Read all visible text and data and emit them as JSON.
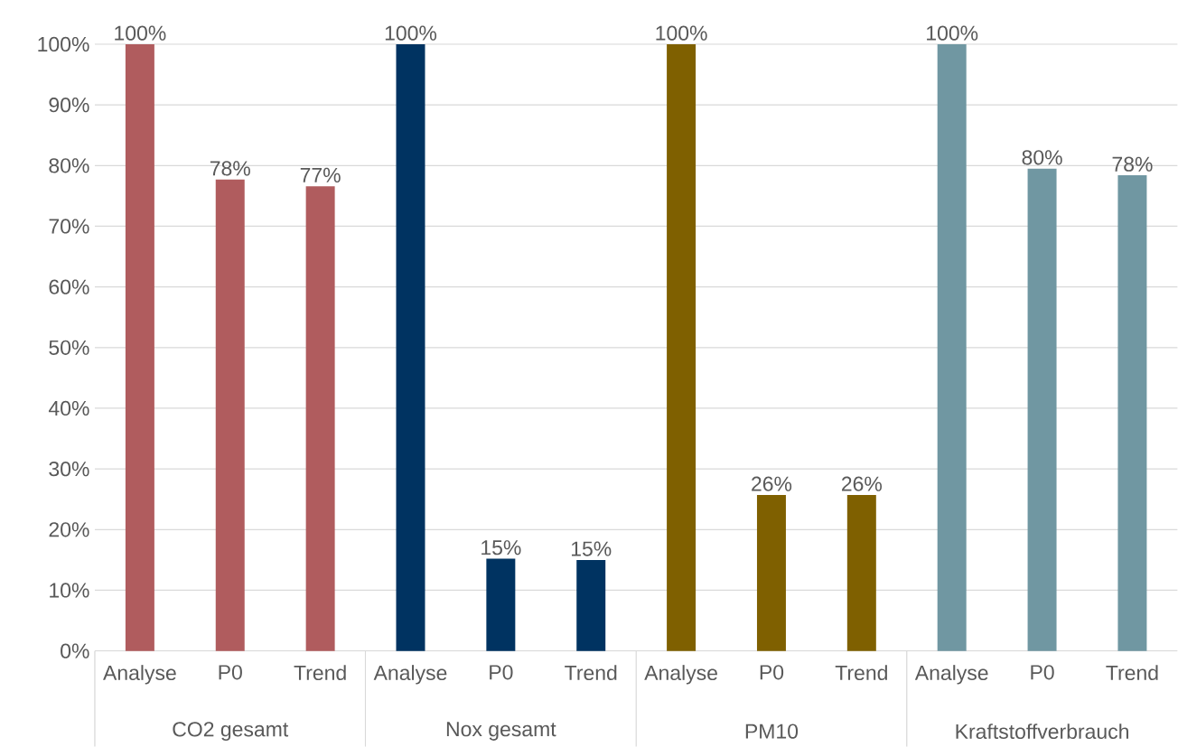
{
  "chart_data": {
    "type": "bar",
    "categories": [
      "Analyse",
      "P0",
      "Trend",
      "Analyse",
      "P0",
      "Trend",
      "Analyse",
      "P0",
      "Trend",
      "Analyse",
      "P0",
      "Trend"
    ],
    "series": [
      {
        "color": "#b05c5e",
        "values": [
          100,
          77.7,
          76.6,
          null,
          null,
          null,
          null,
          null,
          null,
          null,
          null,
          null
        ],
        "value_labels": [
          "100%",
          "78%",
          "77%",
          null,
          null,
          null,
          null,
          null,
          null,
          null,
          null,
          null
        ]
      },
      {
        "color": "#003361",
        "values": [
          null,
          null,
          null,
          100,
          15.2,
          15.0,
          null,
          null,
          null,
          null,
          null,
          null
        ],
        "value_labels": [
          null,
          null,
          null,
          "100%",
          "15%",
          "15%",
          null,
          null,
          null,
          null,
          null,
          null
        ]
      },
      {
        "color": "#7f6000",
        "values": [
          null,
          null,
          null,
          null,
          null,
          null,
          100,
          25.7,
          25.7,
          null,
          null,
          null
        ],
        "value_labels": [
          null,
          null,
          null,
          null,
          null,
          null,
          "100%",
          "26%",
          "26%",
          null,
          null,
          null
        ]
      },
      {
        "color": "#7097a2",
        "values": [
          null,
          null,
          null,
          null,
          null,
          null,
          null,
          null,
          null,
          100,
          79.5,
          78.4
        ],
        "value_labels": [
          null,
          null,
          null,
          null,
          null,
          null,
          null,
          null,
          null,
          "100%",
          "80%",
          "78%"
        ]
      }
    ],
    "ylim": [
      0,
      100
    ],
    "yticks": [
      {
        "value": 0,
        "label": "0%"
      },
      {
        "value": 10,
        "label": "10%"
      },
      {
        "value": 20,
        "label": "20%"
      },
      {
        "value": 30,
        "label": "30%"
      },
      {
        "value": 40,
        "label": "40%"
      },
      {
        "value": 50,
        "label": "50%"
      },
      {
        "value": 60,
        "label": "60%"
      },
      {
        "value": 70,
        "label": "70%"
      },
      {
        "value": 80,
        "label": "80%"
      },
      {
        "value": 90,
        "label": "90%"
      },
      {
        "value": 100,
        "label": "100%"
      }
    ],
    "annotations": [
      "CO2 gesamt",
      "Nox gesamt",
      "PM10",
      "Kraftstoffverbrauch"
    ],
    "grid": "y"
  }
}
